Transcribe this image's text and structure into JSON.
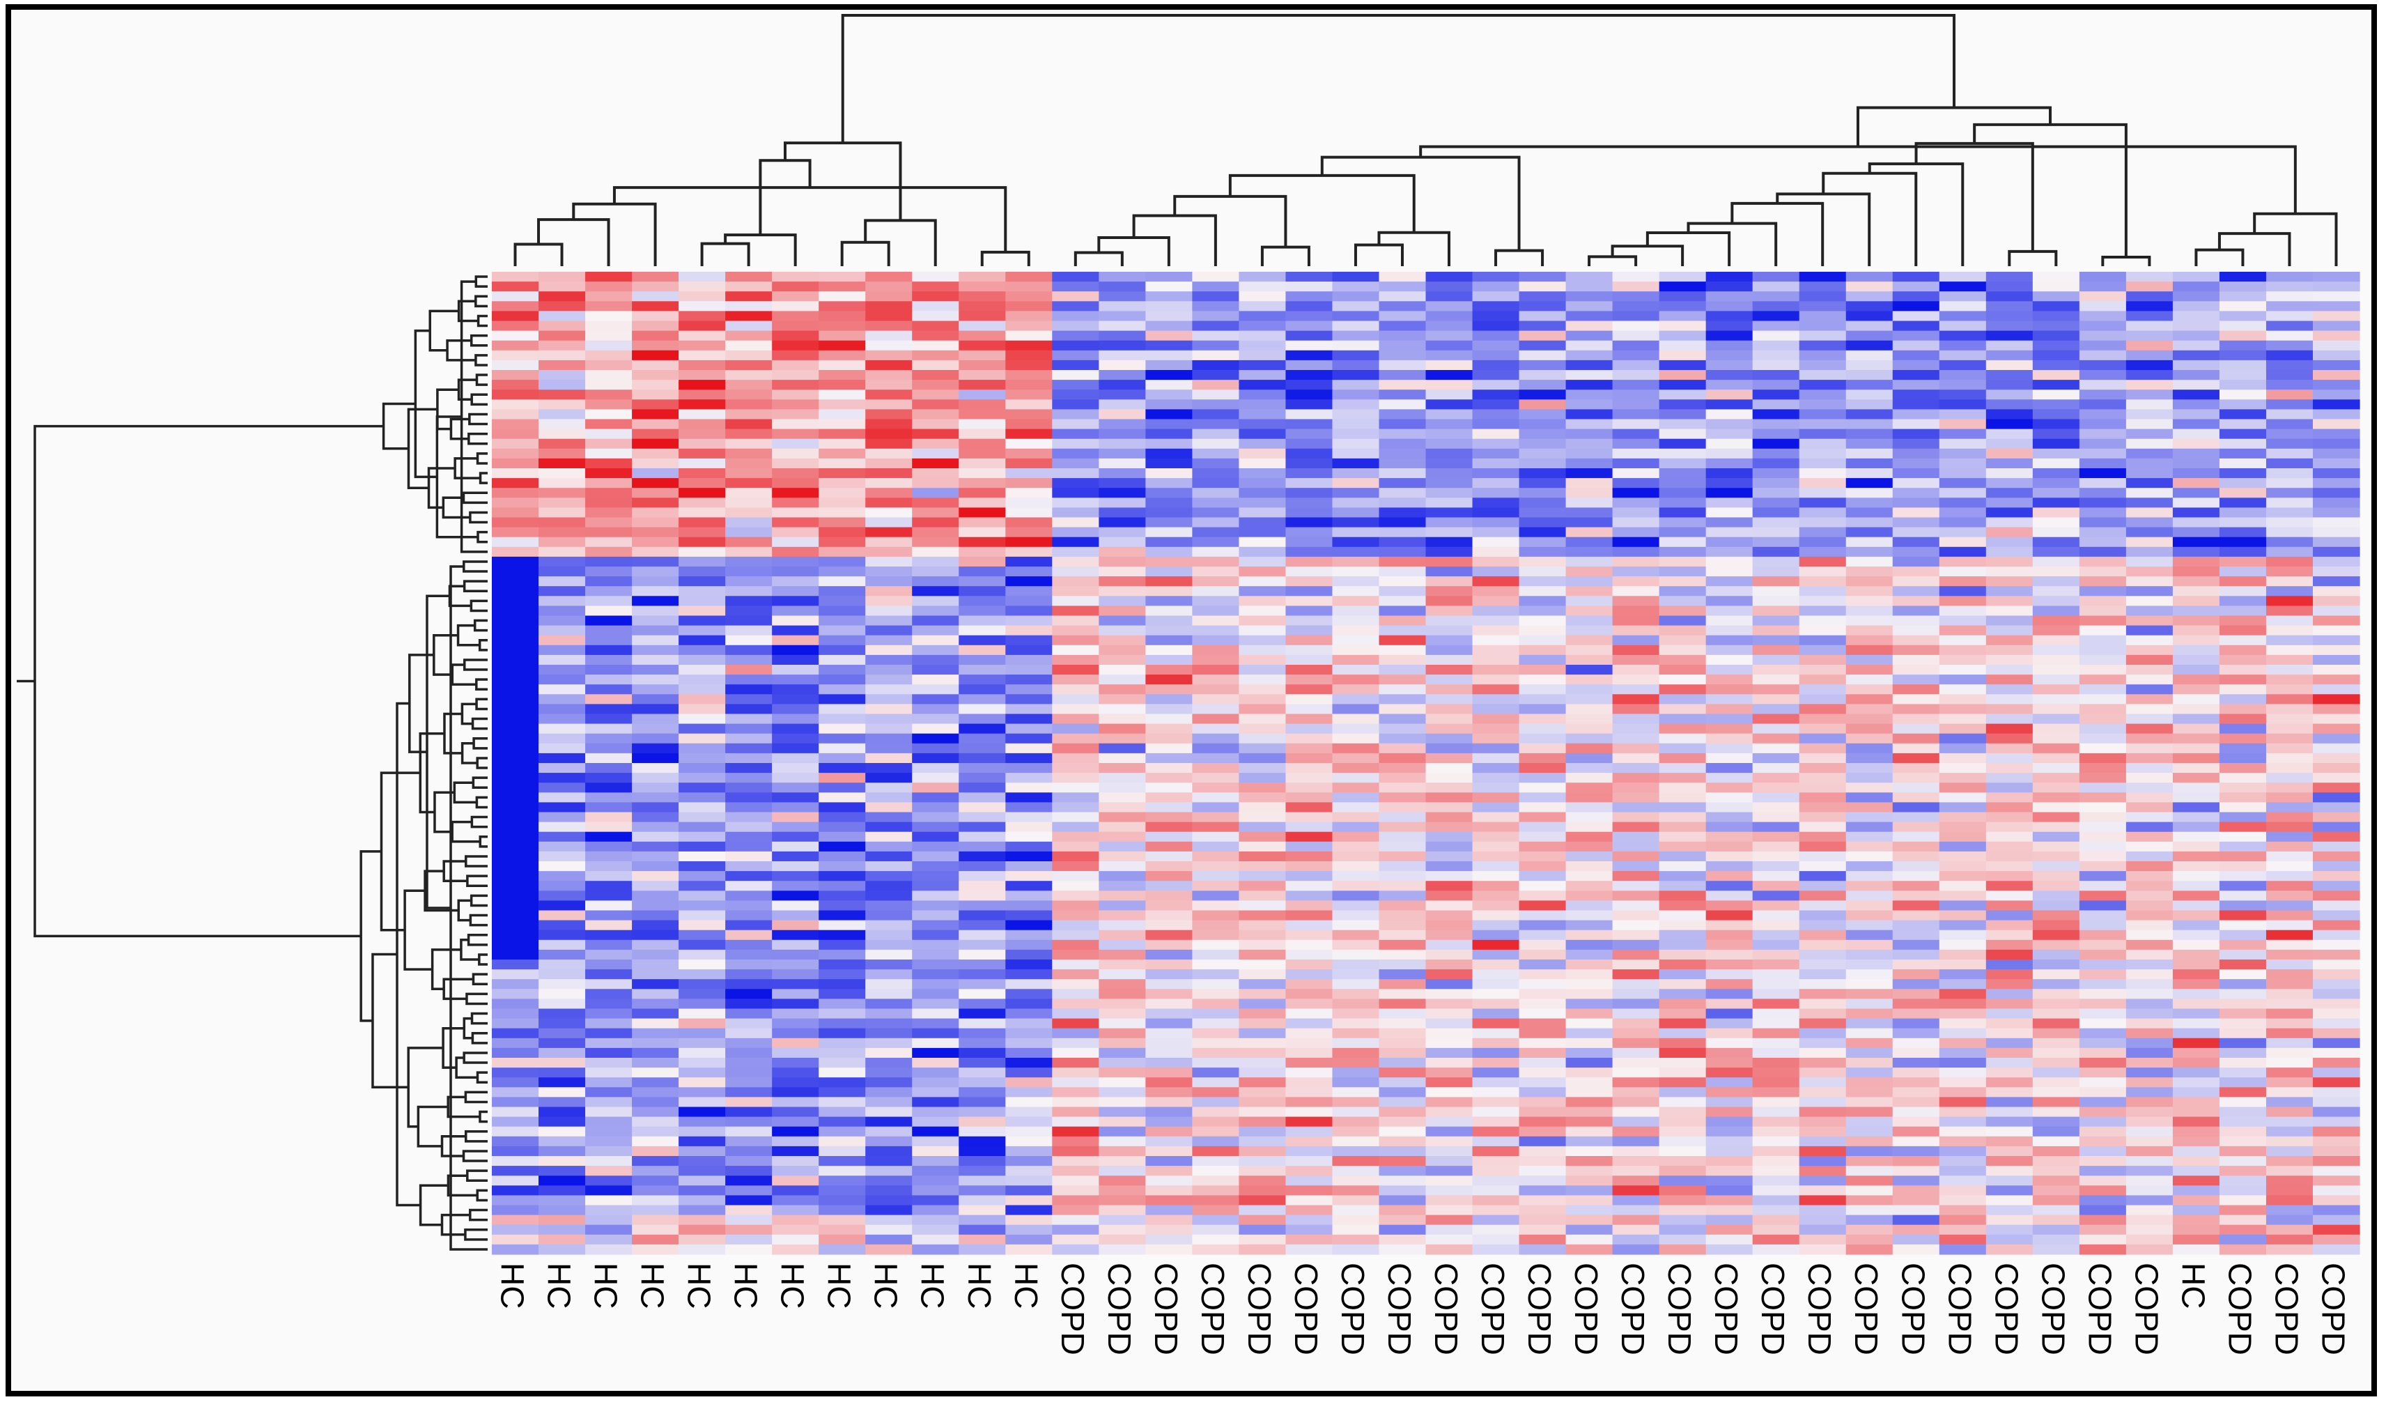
{
  "chart_data": {
    "type": "heatmap",
    "title": "",
    "xlabel": "",
    "ylabel": "",
    "columns": [
      "HC",
      "HC",
      "HC",
      "HC",
      "HC",
      "HC",
      "HC",
      "HC",
      "HC",
      "HC",
      "HC",
      "HC",
      "COPD",
      "COPD",
      "COPD",
      "COPD",
      "COPD",
      "COPD",
      "COPD",
      "COPD",
      "COPD",
      "COPD",
      "COPD",
      "COPD",
      "COPD",
      "COPD",
      "COPD",
      "COPD",
      "COPD",
      "COPD",
      "COPD",
      "COPD",
      "COPD",
      "COPD",
      "COPD",
      "COPD",
      "HC",
      "COPD",
      "COPD",
      "COPD"
    ],
    "row_count": 100,
    "value_range": [
      -2,
      2
    ],
    "color_scale": {
      "low": "#0a14e6",
      "mid": "#f8f4f6",
      "high": "#e8121a"
    },
    "column_dendrogram": true,
    "row_dendrogram": true,
    "block_patterns": [
      {
        "columns": [
          0,
          11
        ],
        "rows": [
          0,
          28
        ],
        "trend": "high"
      },
      {
        "columns": [
          0,
          11
        ],
        "rows": [
          29,
          95
        ],
        "trend": "low"
      },
      {
        "columns": [
          12,
          39
        ],
        "rows": [
          0,
          28
        ],
        "trend": "low"
      },
      {
        "columns": [
          12,
          39
        ],
        "rows": [
          29,
          99
        ],
        "trend": "mixed"
      }
    ]
  }
}
